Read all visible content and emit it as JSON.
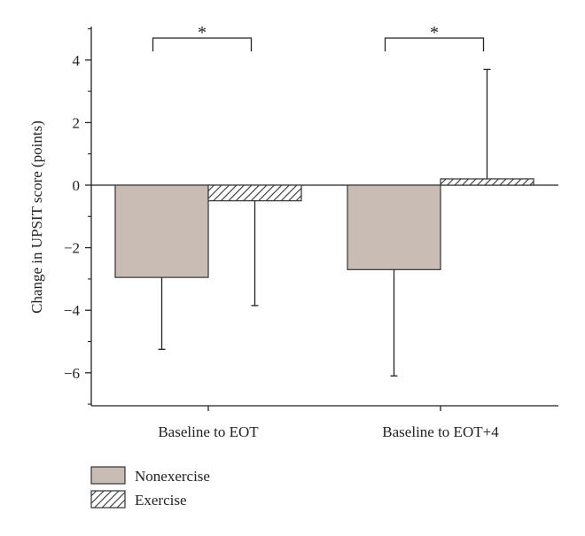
{
  "chart_data": {
    "type": "bar",
    "title": "",
    "xlabel": "",
    "ylabel": "Change in UPSIT score (points)",
    "ylim": [
      -7,
      5
    ],
    "yticks": [
      -6,
      -4,
      -2,
      0,
      2,
      4
    ],
    "ytick_labels": [
      "−6",
      "−4",
      "−2",
      "0",
      "2",
      "4"
    ],
    "categories": [
      "Baseline to EOT",
      "Baseline to EOT+4"
    ],
    "series": [
      {
        "name": "Nonexercise",
        "values": [
          -2.95,
          -2.7
        ],
        "error_low": [
          -5.25,
          -6.1
        ],
        "error_high": [
          -2.95,
          -2.7
        ],
        "fill": "#c9bcb5",
        "pattern": "solid"
      },
      {
        "name": "Exercise",
        "values": [
          -0.5,
          0.2
        ],
        "error_low": [
          -3.85,
          0.2
        ],
        "error_high": [
          -0.5,
          3.7
        ],
        "fill": "#ffffff",
        "pattern": "hatch"
      }
    ],
    "significance": [
      {
        "category": "Baseline to EOT",
        "label": "*"
      },
      {
        "category": "Baseline to EOT+4",
        "label": "*"
      }
    ],
    "legend": {
      "placement": "bottom-left"
    },
    "grid": false
  }
}
